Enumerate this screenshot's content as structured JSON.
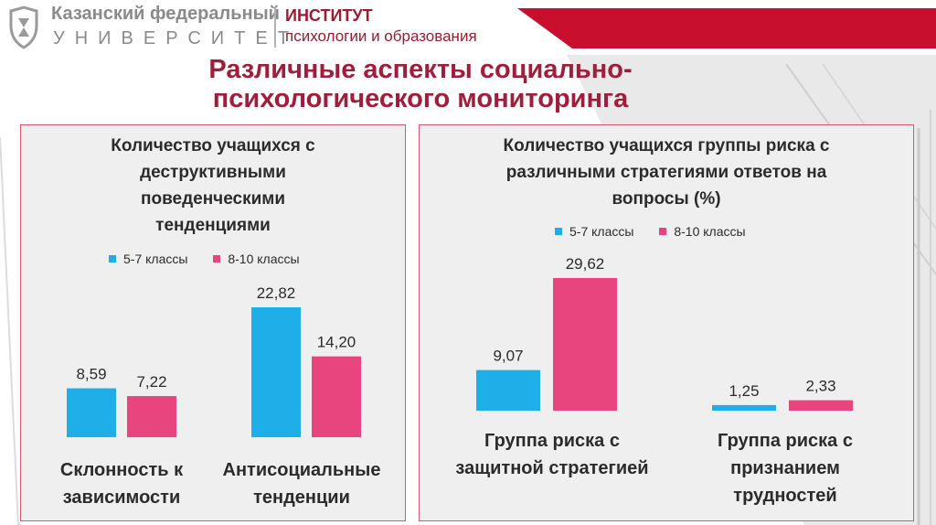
{
  "header": {
    "university_line1": "Казанский федеральный",
    "university_line2": "УНИВЕРСИТЕТ",
    "institute_line1": "ИНСТИТУТ",
    "institute_line2": "психологии и образования"
  },
  "title_line1": "Различные аспекты социально-",
  "title_line2": "психологического мониторинга",
  "colors": {
    "blue": "#1eaee8",
    "pink": "#e8457e",
    "accent": "#c8102e",
    "title": "#a11d3c"
  },
  "chart_data": [
    {
      "type": "bar",
      "title_lines": [
        "Количество учащихся  с",
        "деструктивными",
        "поведенческими",
        "тенденциями"
      ],
      "categories": [
        "Склонность к зависимости",
        "Антисоциальные тенденции"
      ],
      "category_lines": [
        [
          "Склонность к",
          "зависимости"
        ],
        [
          "Антисоциальные",
          "тенденции"
        ]
      ],
      "series": [
        {
          "name": "5-7 классы",
          "values": [
            8.59,
            22.82
          ],
          "labels": [
            "8,59",
            "22,82"
          ],
          "color": "#1eaee8"
        },
        {
          "name": "8-10 классы",
          "values": [
            7.22,
            14.2
          ],
          "labels": [
            "7,22",
            "14,20"
          ],
          "color": "#e8457e"
        }
      ],
      "ylim": [
        0,
        22.82
      ],
      "grid": false,
      "legend_position": "top"
    },
    {
      "type": "bar",
      "title_lines": [
        "Количество учащихся группы риска с",
        "различными стратегиями ответов на",
        "вопросы (%)"
      ],
      "categories": [
        "Группа риска с защитной стратегией",
        "Группа риска с признанием трудностей"
      ],
      "category_lines": [
        [
          "Группа риска с",
          "защитной стратегией"
        ],
        [
          "Группа риска с",
          "признанием",
          "трудностей"
        ]
      ],
      "series": [
        {
          "name": "5-7 классы",
          "values": [
            9.07,
            1.25
          ],
          "labels": [
            "9,07",
            "1,25"
          ],
          "color": "#1eaee8"
        },
        {
          "name": "8-10 классы",
          "values": [
            29.62,
            2.33
          ],
          "labels": [
            "29,62",
            "2,33"
          ],
          "color": "#e8457e"
        }
      ],
      "ylim": [
        0,
        29.62
      ],
      "grid": false,
      "legend_position": "top"
    }
  ]
}
